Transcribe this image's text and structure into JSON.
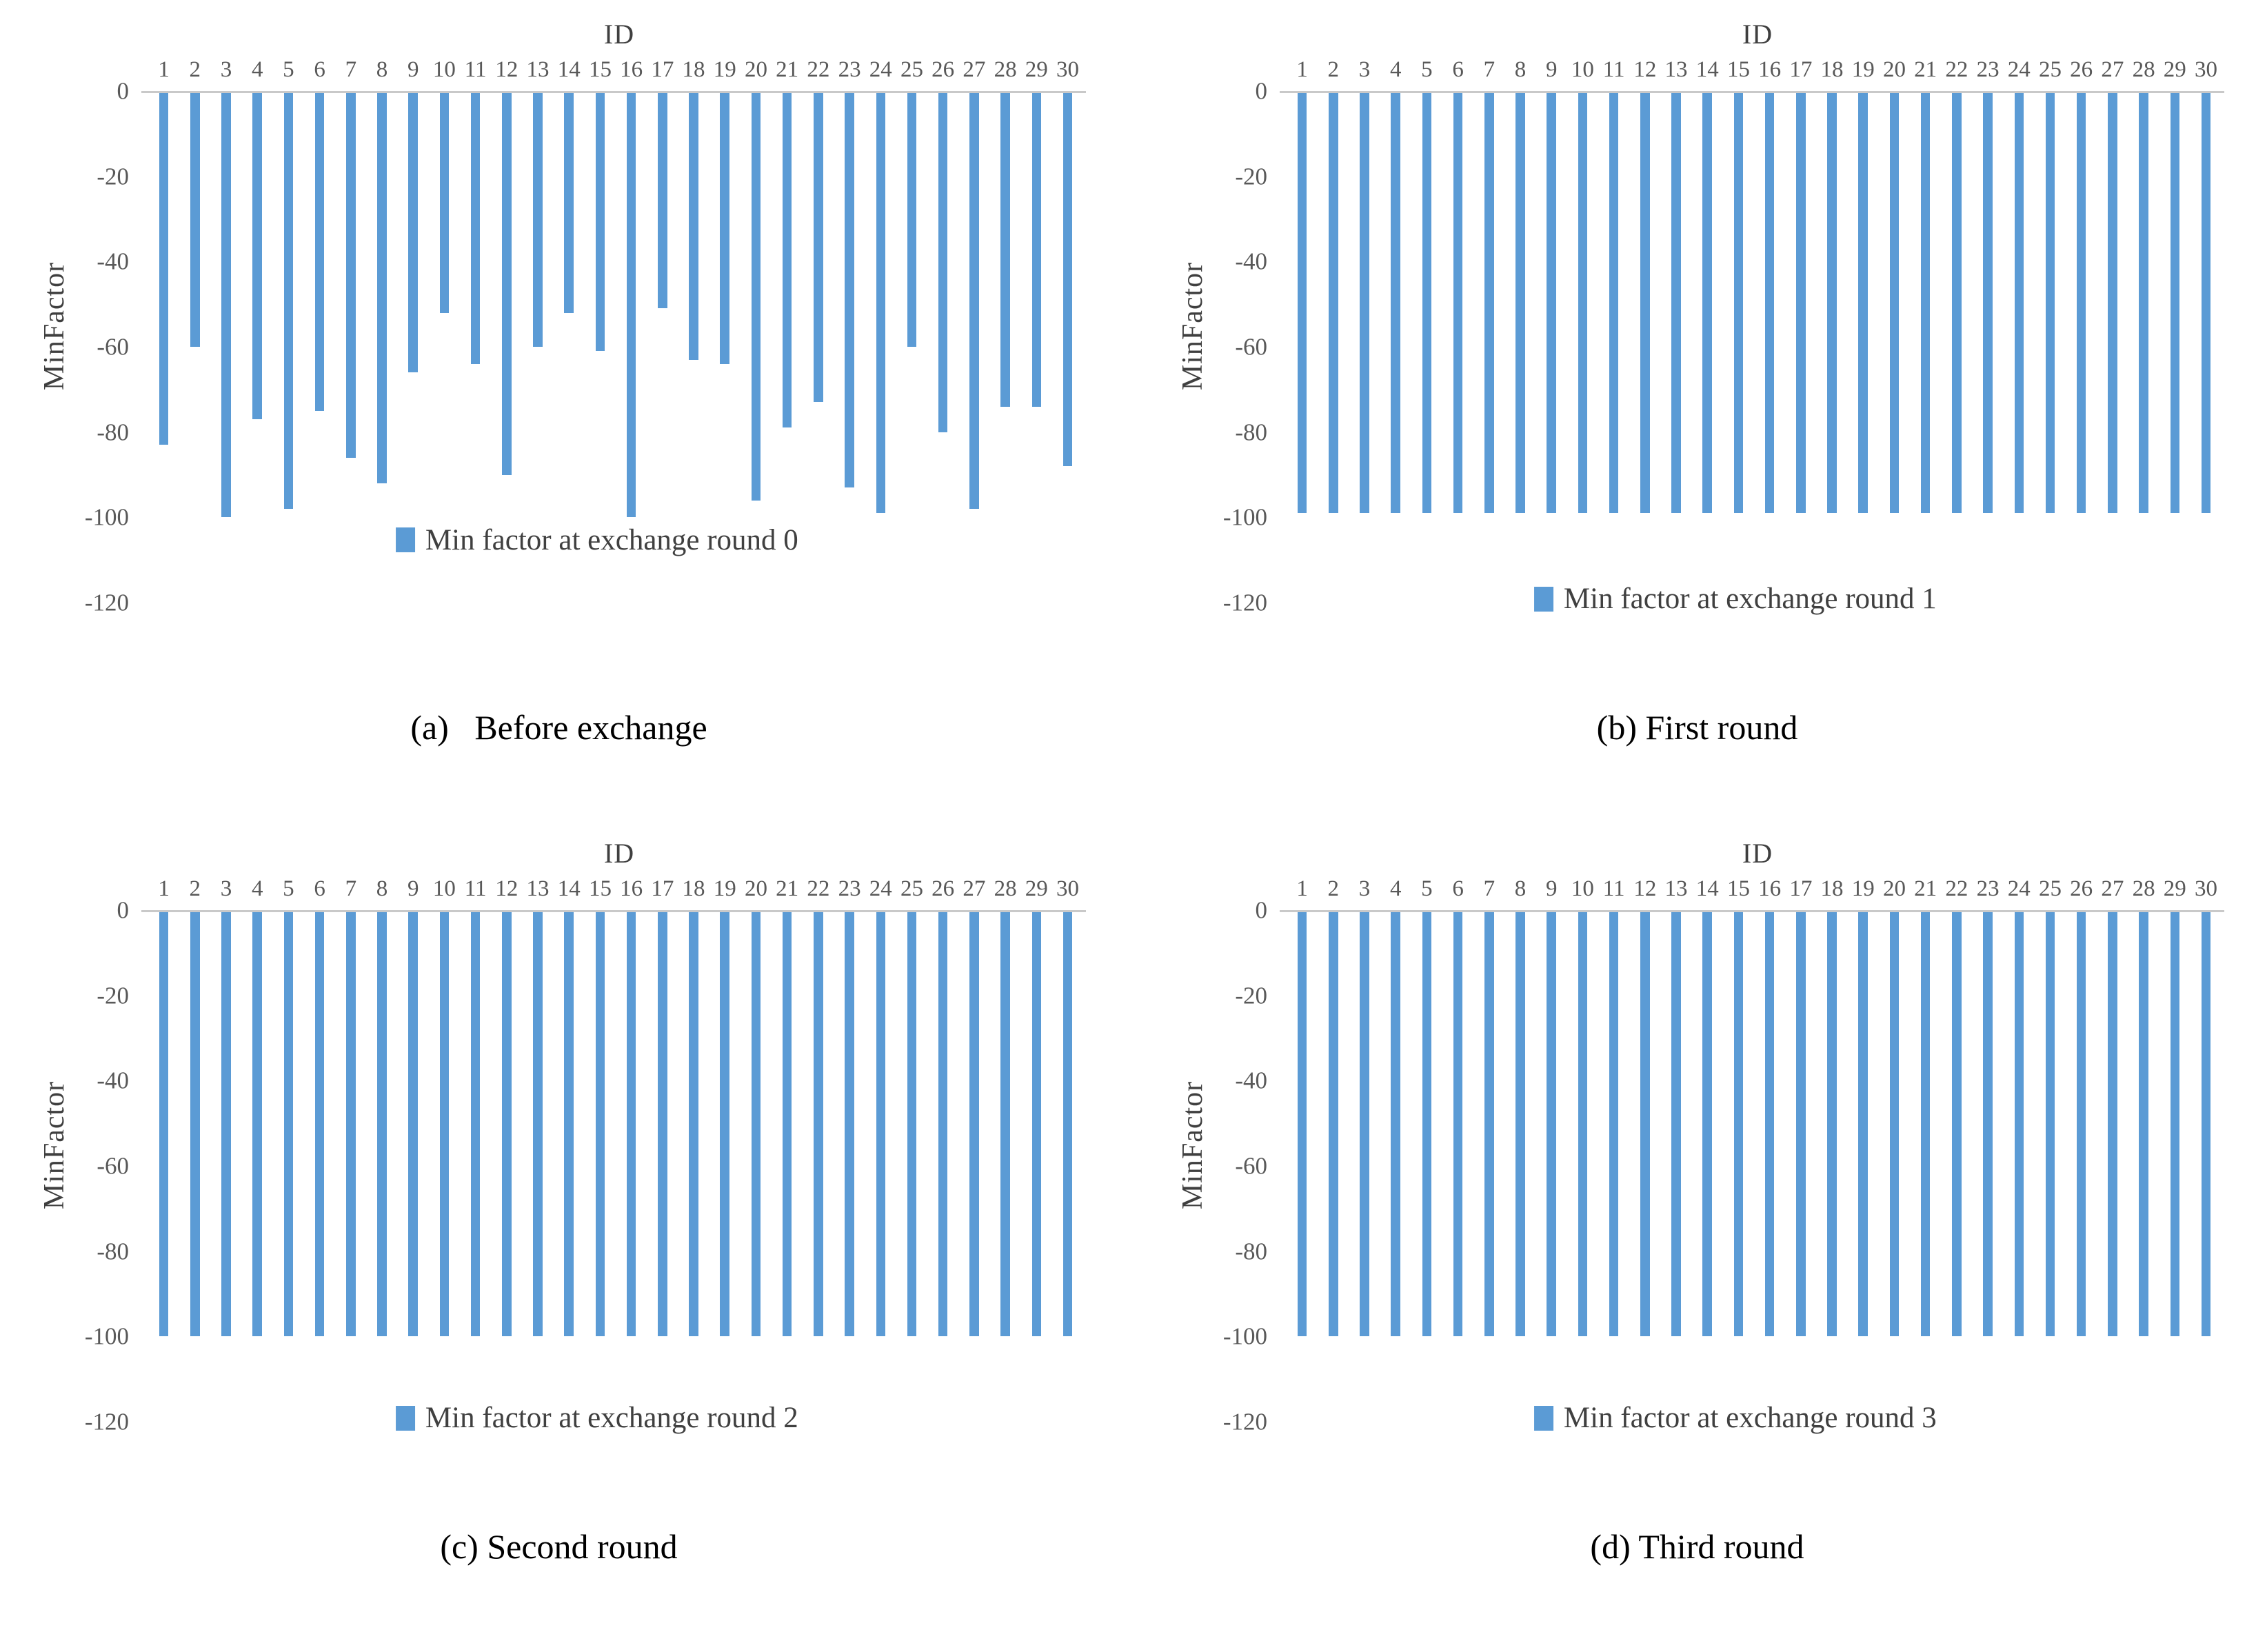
{
  "figure": {
    "bar_color": "#5B9BD5",
    "axis_line_color": "#C9C9C9",
    "tick_text_color": "#595959",
    "heading_text_color": "#3F3F3F",
    "legend_text_color": "#404040",
    "caption_text_color": "#000000"
  },
  "chart_data": [
    {
      "type": "bar",
      "panel": "a",
      "title": "ID",
      "ylabel": "MinFactor",
      "categories": [
        "1",
        "2",
        "3",
        "4",
        "5",
        "6",
        "7",
        "8",
        "9",
        "10",
        "11",
        "12",
        "13",
        "14",
        "15",
        "16",
        "17",
        "18",
        "19",
        "20",
        "21",
        "22",
        "23",
        "24",
        "25",
        "26",
        "27",
        "28",
        "29",
        "30"
      ],
      "values": [
        -83,
        -60,
        -100,
        -77,
        -98,
        -75,
        -86,
        -92,
        -66,
        -52,
        -64,
        -90,
        -60,
        -52,
        -61,
        -100,
        -51,
        -63,
        -64,
        -96,
        -79,
        -73,
        -93,
        -99,
        -60,
        -80,
        -98,
        -74,
        -74,
        -88
      ],
      "legend": "Min factor at exchange round 0",
      "caption": "(a)   Before exchange",
      "ylim": [
        -120,
        0
      ],
      "yticks": [
        0,
        -20,
        -40,
        -60,
        -80,
        -100,
        -120
      ],
      "grid": "off",
      "legend_position": "below plot, centered"
    },
    {
      "type": "bar",
      "panel": "b",
      "title": "ID",
      "ylabel": "MinFactor",
      "categories": [
        "1",
        "2",
        "3",
        "4",
        "5",
        "6",
        "7",
        "8",
        "9",
        "10",
        "11",
        "12",
        "13",
        "14",
        "15",
        "16",
        "17",
        "18",
        "19",
        "20",
        "21",
        "22",
        "23",
        "24",
        "25",
        "26",
        "27",
        "28",
        "29",
        "30"
      ],
      "values": [
        -99,
        -99,
        -99,
        -99,
        -99,
        -99,
        -99,
        -99,
        -99,
        -99,
        -99,
        -99,
        -99,
        -99,
        -99,
        -99,
        -99,
        -99,
        -99,
        -99,
        -99,
        -99,
        -99,
        -99,
        -99,
        -99,
        -99,
        -99,
        -99,
        -99
      ],
      "legend": "Min factor at exchange round 1",
      "caption": "(b) First round",
      "ylim": [
        -120,
        0
      ],
      "yticks": [
        0,
        -20,
        -40,
        -60,
        -80,
        -100,
        -120
      ],
      "grid": "off",
      "legend_position": "below plot, centered"
    },
    {
      "type": "bar",
      "panel": "c",
      "title": "ID",
      "ylabel": "MinFactor",
      "categories": [
        "1",
        "2",
        "3",
        "4",
        "5",
        "6",
        "7",
        "8",
        "9",
        "10",
        "11",
        "12",
        "13",
        "14",
        "15",
        "16",
        "17",
        "18",
        "19",
        "20",
        "21",
        "22",
        "23",
        "24",
        "25",
        "26",
        "27",
        "28",
        "29",
        "30"
      ],
      "values": [
        -100,
        -100,
        -100,
        -100,
        -100,
        -100,
        -100,
        -100,
        -100,
        -100,
        -100,
        -100,
        -100,
        -100,
        -100,
        -100,
        -100,
        -100,
        -100,
        -100,
        -100,
        -100,
        -100,
        -100,
        -100,
        -100,
        -100,
        -100,
        -100,
        -100
      ],
      "legend": "Min factor at exchange round 2",
      "caption": "(c) Second round",
      "ylim": [
        -120,
        0
      ],
      "yticks": [
        0,
        -20,
        -40,
        -60,
        -80,
        -100,
        -120
      ],
      "grid": "off",
      "legend_position": "below plot, centered"
    },
    {
      "type": "bar",
      "panel": "d",
      "title": "ID",
      "ylabel": "MinFactor",
      "categories": [
        "1",
        "2",
        "3",
        "4",
        "5",
        "6",
        "7",
        "8",
        "9",
        "10",
        "11",
        "12",
        "13",
        "14",
        "15",
        "16",
        "17",
        "18",
        "19",
        "20",
        "21",
        "22",
        "23",
        "24",
        "25",
        "26",
        "27",
        "28",
        "29",
        "30"
      ],
      "values": [
        -100,
        -100,
        -100,
        -100,
        -100,
        -100,
        -100,
        -100,
        -100,
        -100,
        -100,
        -100,
        -100,
        -100,
        -100,
        -100,
        -100,
        -100,
        -100,
        -100,
        -100,
        -100,
        -100,
        -100,
        -100,
        -100,
        -100,
        -100,
        -100,
        -100
      ],
      "legend": "Min factor at exchange round 3",
      "caption": "(d) Third round",
      "ylim": [
        -120,
        0
      ],
      "yticks": [
        0,
        -20,
        -40,
        -60,
        -80,
        -100,
        -120
      ],
      "grid": "off",
      "legend_position": "below plot, centered"
    }
  ]
}
